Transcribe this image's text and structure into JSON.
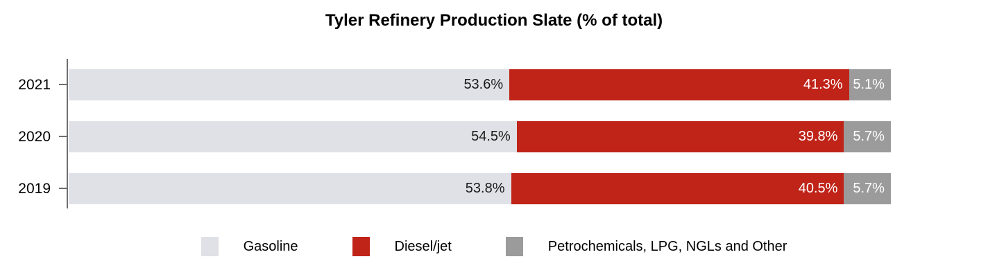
{
  "title": "Tyler Refinery Production Slate (% of total)",
  "colors": {
    "axis": "#6e6e6e",
    "background": "#ffffff",
    "title_text": "#000000"
  },
  "chart_data": {
    "type": "bar",
    "orientation": "horizontal",
    "stacked": true,
    "title": "Tyler Refinery Production Slate (% of total)",
    "categories": [
      "2021",
      "2020",
      "2019"
    ],
    "series": [
      {
        "name": "Gasoline",
        "color": "#e0e1e6",
        "label_color": "#1a1a1a",
        "values": [
          53.6,
          54.5,
          53.8
        ]
      },
      {
        "name": "Diesel/jet",
        "color": "#c02318",
        "label_color": "#ffffff",
        "values": [
          41.3,
          39.8,
          40.5
        ]
      },
      {
        "name": "Petrochemicals, LPG, NGLs and Other",
        "color": "#9b9b9b",
        "label_color": "#ffffff",
        "values": [
          5.1,
          5.7,
          5.7
        ]
      }
    ],
    "value_suffix": "%",
    "xlim": [
      0,
      100
    ],
    "grid": false,
    "legend_position": "bottom",
    "data_labels": "inside-end"
  }
}
